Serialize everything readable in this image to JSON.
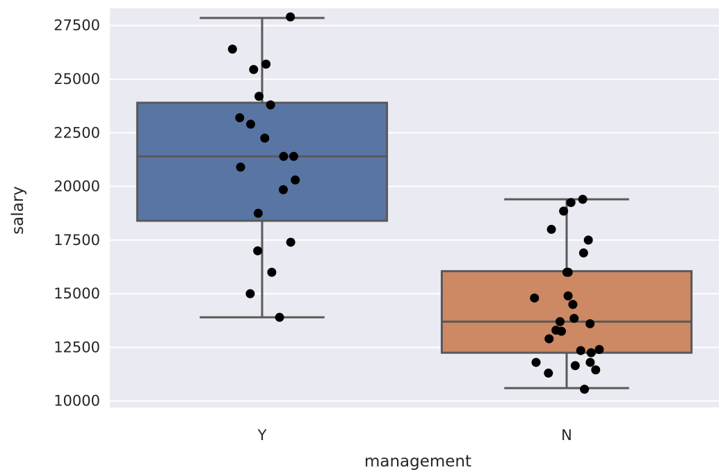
{
  "chart_data": {
    "type": "box",
    "xlabel": "management",
    "ylabel": "salary",
    "ylim": [
      9700,
      28300
    ],
    "yticks": [
      10000,
      12500,
      15000,
      17500,
      20000,
      22500,
      25000,
      27500
    ],
    "ytick_labels": [
      "10000",
      "12500",
      "15000",
      "17500",
      "20000",
      "22500",
      "25000",
      "27500"
    ],
    "grid": true,
    "background": "#eaeaf2",
    "categories": [
      "Y",
      "N"
    ],
    "boxes": [
      {
        "category": "Y",
        "color": "#5875a4",
        "whisker_low": 13900,
        "q1": 18400,
        "median": 21400,
        "q3": 23900,
        "whisker_high": 27850
      },
      {
        "category": "N",
        "color": "#cc8963",
        "whisker_low": 10600,
        "q1": 12250,
        "median": 13700,
        "q3": 16050,
        "whisker_high": 19400
      }
    ],
    "points": [
      {
        "category": "Y",
        "values": [
          27900,
          26400,
          25700,
          25450,
          24200,
          23800,
          23200,
          22900,
          22250,
          21400,
          21400,
          20900,
          20300,
          19850,
          18750,
          17400,
          17000,
          16000,
          15000,
          13900
        ]
      },
      {
        "category": "N",
        "values": [
          19400,
          19250,
          18850,
          18000,
          17500,
          16900,
          16000,
          16000,
          14900,
          14800,
          14500,
          13850,
          13700,
          13600,
          13300,
          13250,
          12900,
          12400,
          12350,
          12250,
          11800,
          11800,
          11650,
          11450,
          11300,
          10550
        ]
      }
    ],
    "point_color": "#000000",
    "line_color": "#595959"
  }
}
